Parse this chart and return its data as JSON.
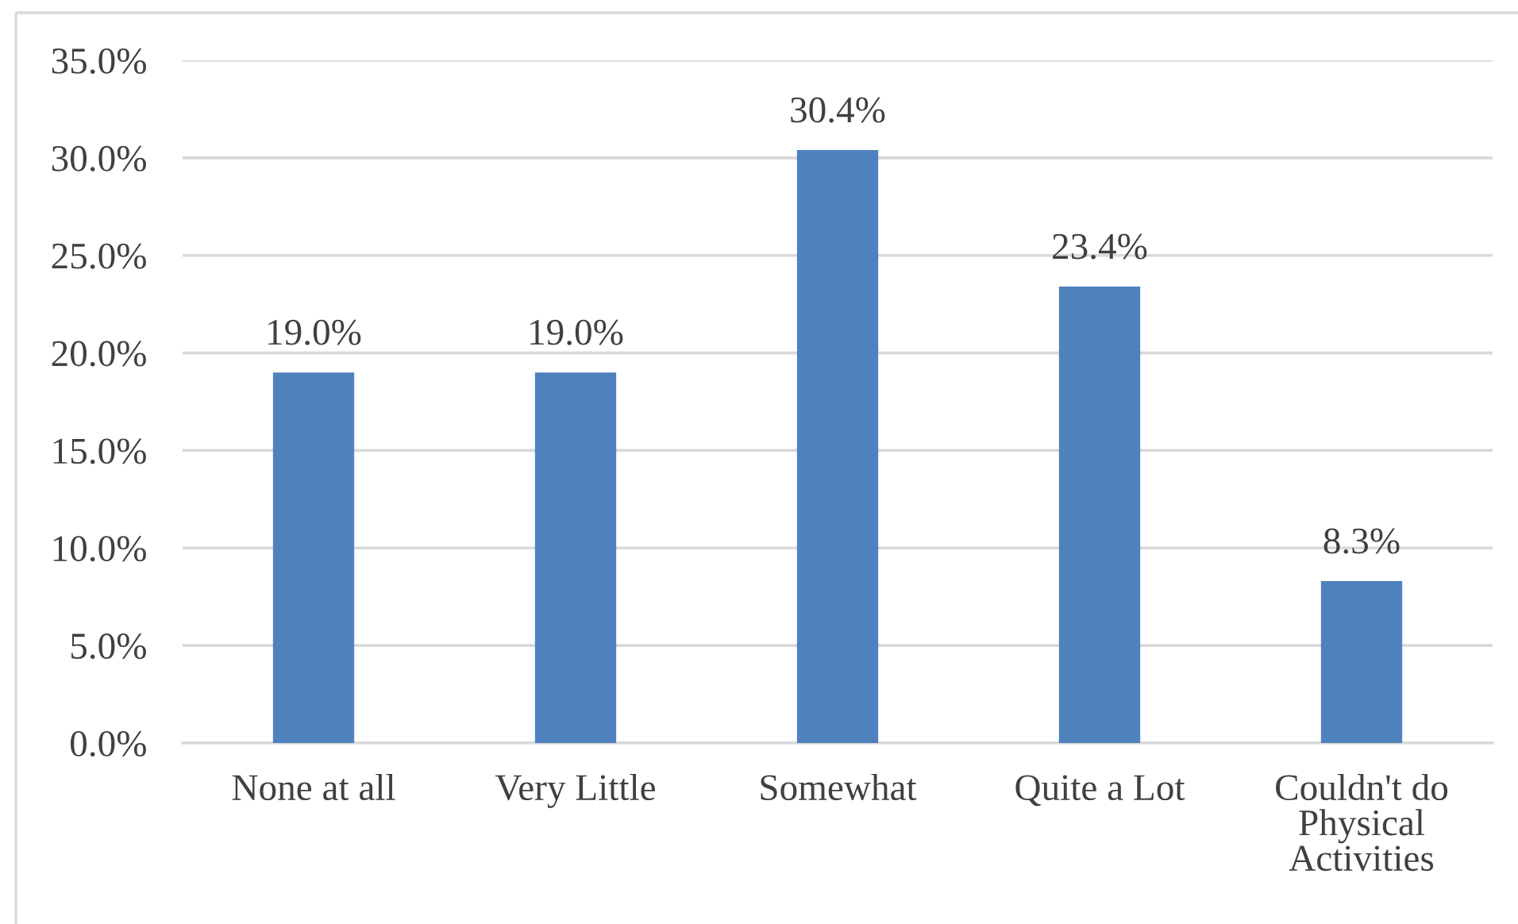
{
  "chart_data": {
    "type": "bar",
    "categories": [
      "None at all",
      "Very Little",
      "Somewhat",
      "Quite a Lot",
      "Couldn't do\nPhysical\nActivities"
    ],
    "values": [
      19.0,
      19.0,
      30.4,
      23.4,
      8.3
    ],
    "color": "#4f81bd",
    "value_labels": [
      "19.0%",
      "19.0%",
      "30.4%",
      "23.4%",
      "8.3%"
    ],
    "ylim": [
      0,
      35
    ],
    "yticks": [
      {
        "value": 0,
        "label": "0.0%"
      },
      {
        "value": 5,
        "label": "5.0%"
      },
      {
        "value": 10,
        "label": "10.0%"
      },
      {
        "value": 15,
        "label": "15.0%"
      },
      {
        "value": 20,
        "label": "20.0%"
      },
      {
        "value": 25,
        "label": "25.0%"
      },
      {
        "value": 30,
        "label": "30.0%"
      },
      {
        "value": 35,
        "label": "35.0%"
      }
    ],
    "grid": "y",
    "legend": false
  }
}
